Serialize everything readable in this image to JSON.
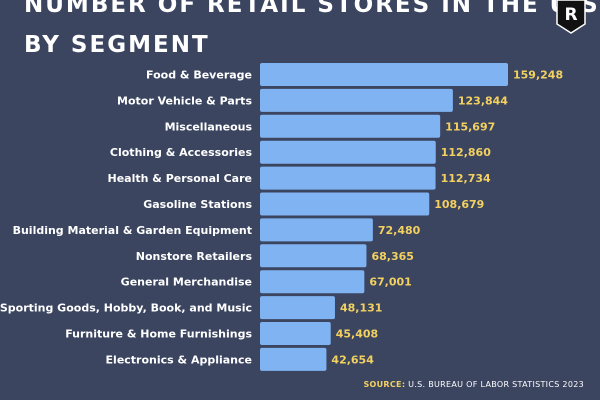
{
  "header": {
    "title_line1": "NUMBER OF RETAIL STORES IN THE U.S.",
    "title_line2": "BY SEGMENT",
    "logo_letter": "R"
  },
  "footer": {
    "source_label": "SOURCE:",
    "source_text": "U.S. BUREAU OF LABOR STATISTICS 2023"
  },
  "colors": {
    "background": "#3b4560",
    "bar": "#80b3f2",
    "value_label": "#f2d160",
    "text": "#ffffff"
  },
  "chart_data": {
    "type": "bar",
    "orientation": "horizontal",
    "title": "NUMBER OF RETAIL STORES IN THE U.S. BY SEGMENT",
    "categories": [
      "Food & Beverage",
      "Motor Vehicle & Parts",
      "Miscellaneous",
      "Clothing & Accessories",
      "Health & Personal Care",
      "Gasoline Stations",
      "Building Material & Garden Equipment",
      "Nonstore Retailers",
      "General Merchandise",
      "Sporting Goods, Hobby, Book, and Music",
      "Furniture & Home Furnishings",
      "Electronics & Appliance"
    ],
    "values": [
      159248,
      123844,
      115697,
      112860,
      112734,
      108679,
      72480,
      68365,
      67001,
      48131,
      45408,
      42654
    ],
    "value_labels": [
      "159,248",
      "123,844",
      "115,697",
      "112,860",
      "112,734",
      "108,679",
      "72,480",
      "68,365",
      "67,001",
      "48,131",
      "45,408",
      "42,654"
    ],
    "xlim": [
      0,
      159248
    ],
    "grid": false,
    "legend": "none"
  }
}
